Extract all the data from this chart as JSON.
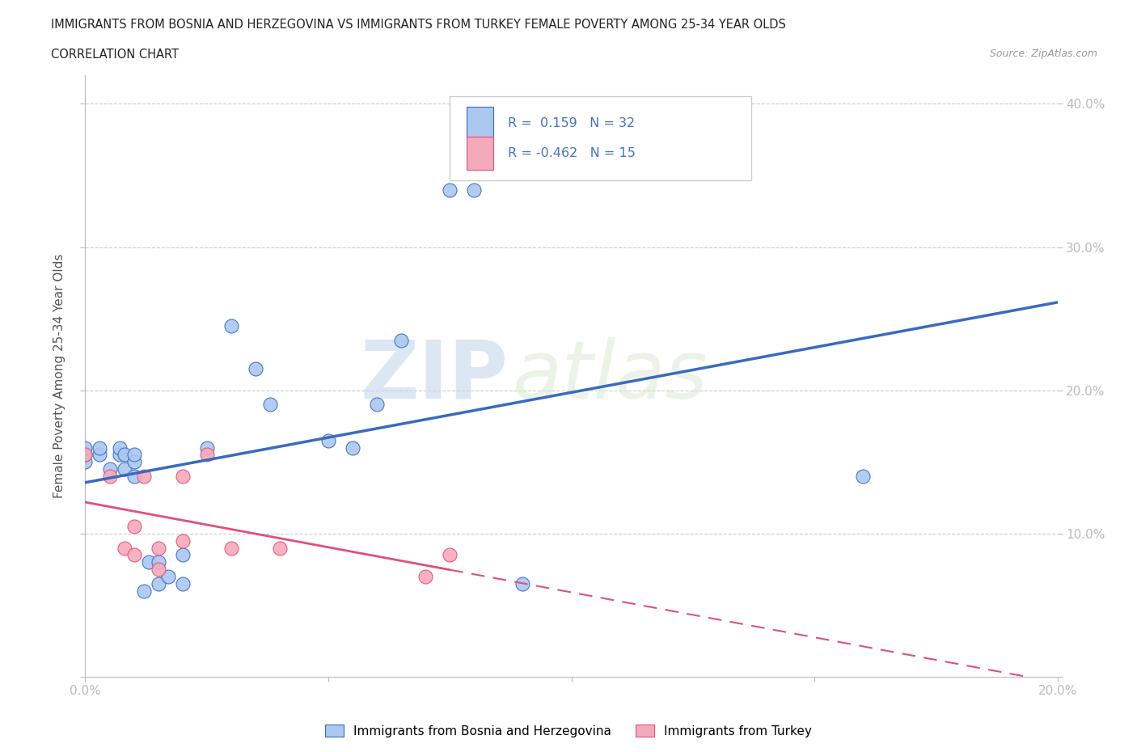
{
  "title_line1": "IMMIGRANTS FROM BOSNIA AND HERZEGOVINA VS IMMIGRANTS FROM TURKEY FEMALE POVERTY AMONG 25-34 YEAR OLDS",
  "title_line2": "CORRELATION CHART",
  "source": "Source: ZipAtlas.com",
  "ylabel": "Female Poverty Among 25-34 Year Olds",
  "xlim": [
    0.0,
    0.2
  ],
  "ylim": [
    0.0,
    0.42
  ],
  "R_bosnia": 0.159,
  "N_bosnia": 32,
  "R_turkey": -0.462,
  "N_turkey": 15,
  "color_bosnia": "#aac8f0",
  "color_turkey": "#f5aabb",
  "color_line_bosnia": "#3a6abf",
  "color_line_turkey": "#e0507a",
  "watermark_zip": "ZIP",
  "watermark_atlas": "atlas",
  "bosnia_x": [
    0.0,
    0.0,
    0.0,
    0.003,
    0.003,
    0.005,
    0.007,
    0.007,
    0.008,
    0.008,
    0.01,
    0.01,
    0.01,
    0.012,
    0.013,
    0.015,
    0.015,
    0.017,
    0.02,
    0.02,
    0.025,
    0.03,
    0.035,
    0.038,
    0.05,
    0.055,
    0.06,
    0.065,
    0.075,
    0.08,
    0.09,
    0.16
  ],
  "bosnia_y": [
    0.15,
    0.155,
    0.16,
    0.155,
    0.16,
    0.145,
    0.155,
    0.16,
    0.145,
    0.155,
    0.14,
    0.15,
    0.155,
    0.06,
    0.08,
    0.065,
    0.08,
    0.07,
    0.065,
    0.085,
    0.16,
    0.245,
    0.215,
    0.19,
    0.165,
    0.16,
    0.19,
    0.235,
    0.34,
    0.34,
    0.065,
    0.14
  ],
  "turkey_x": [
    0.0,
    0.005,
    0.008,
    0.01,
    0.01,
    0.012,
    0.015,
    0.015,
    0.02,
    0.02,
    0.025,
    0.03,
    0.04,
    0.07,
    0.075
  ],
  "turkey_y": [
    0.155,
    0.14,
    0.09,
    0.085,
    0.105,
    0.14,
    0.075,
    0.09,
    0.095,
    0.14,
    0.155,
    0.09,
    0.09,
    0.07,
    0.085
  ]
}
